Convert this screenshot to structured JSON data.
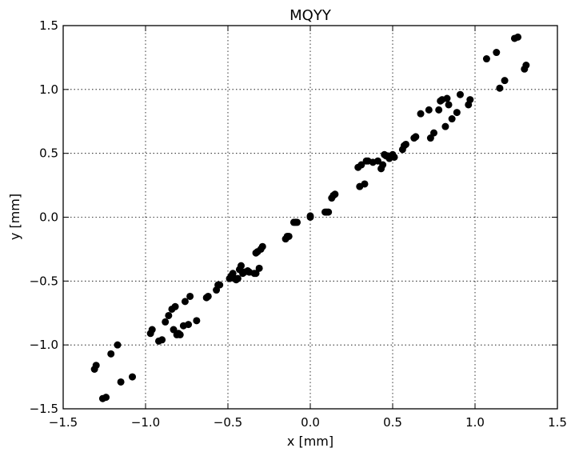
{
  "chart_data": {
    "type": "scatter",
    "title": "MQYY",
    "xlabel": "x [mm]",
    "ylabel": "y [mm]",
    "xlim": [
      -1.5,
      1.5
    ],
    "ylim": [
      -1.5,
      1.5
    ],
    "x_ticks": [
      -1.5,
      -1.0,
      -0.5,
      0.0,
      0.5,
      1.0,
      1.5
    ],
    "y_ticks": [
      -1.5,
      -1.0,
      -0.5,
      0.0,
      0.5,
      1.0,
      1.5
    ],
    "x_tick_labels": [
      "−1.5",
      "−1.0",
      "−0.5",
      "0.0",
      "0.5",
      "1.0",
      "1.5"
    ],
    "y_tick_labels": [
      "−1.5",
      "−1.0",
      "−0.5",
      "0.0",
      "0.5",
      "1.0",
      "1.5"
    ],
    "grid": true,
    "marker_color": "#000000",
    "x": [
      -1.31,
      -1.3,
      -1.26,
      -1.24,
      -1.21,
      -1.17,
      -1.15,
      -1.08,
      -0.97,
      -0.96,
      -0.92,
      -0.9,
      -0.88,
      -0.86,
      -0.84,
      -0.83,
      -0.82,
      -0.81,
      -0.8,
      -0.79,
      -0.77,
      -0.76,
      -0.74,
      -0.73,
      -0.69,
      -0.63,
      -0.62,
      -0.57,
      -0.56,
      -0.55,
      -0.49,
      -0.48,
      -0.47,
      -0.46,
      -0.45,
      -0.44,
      -0.43,
      -0.42,
      -0.41,
      -0.4,
      -0.38,
      -0.37,
      -0.34,
      -0.33,
      -0.33,
      -0.32,
      -0.31,
      -0.3,
      -0.29,
      -0.15,
      -0.14,
      -0.13,
      -0.1,
      -0.09,
      -0.08,
      0.0,
      0.0,
      0.09,
      0.1,
      0.11,
      0.13,
      0.14,
      0.15,
      0.29,
      0.3,
      0.31,
      0.33,
      0.34,
      0.35,
      0.38,
      0.41,
      0.43,
      0.44,
      0.45,
      0.46,
      0.47,
      0.48,
      0.5,
      0.51,
      0.56,
      0.57,
      0.58,
      0.63,
      0.64,
      0.67,
      0.72,
      0.73,
      0.75,
      0.78,
      0.79,
      0.8,
      0.82,
      0.83,
      0.84,
      0.86,
      0.89,
      0.91,
      0.96,
      0.97,
      1.07,
      1.13,
      1.15,
      1.18,
      1.24,
      1.26,
      1.3,
      1.31
    ],
    "y": [
      -1.19,
      -1.16,
      -1.42,
      -1.41,
      -1.07,
      -1.0,
      -1.29,
      -1.25,
      -0.91,
      -0.88,
      -0.97,
      -0.96,
      -0.82,
      -0.77,
      -0.72,
      -0.88,
      -0.7,
      -0.92,
      -0.91,
      -0.92,
      -0.85,
      -0.66,
      -0.84,
      -0.62,
      -0.81,
      -0.63,
      -0.62,
      -0.57,
      -0.53,
      -0.53,
      -0.48,
      -0.46,
      -0.44,
      -0.48,
      -0.49,
      -0.48,
      -0.41,
      -0.38,
      -0.44,
      -0.43,
      -0.42,
      -0.43,
      -0.44,
      -0.44,
      -0.28,
      -0.27,
      -0.4,
      -0.25,
      -0.23,
      -0.17,
      -0.15,
      -0.15,
      -0.04,
      -0.04,
      -0.04,
      0.0,
      0.01,
      0.04,
      0.04,
      0.04,
      0.15,
      0.17,
      0.18,
      0.39,
      0.24,
      0.41,
      0.26,
      0.44,
      0.44,
      0.43,
      0.44,
      0.38,
      0.41,
      0.49,
      0.48,
      0.48,
      0.46,
      0.49,
      0.47,
      0.53,
      0.56,
      0.57,
      0.62,
      0.63,
      0.81,
      0.84,
      0.62,
      0.66,
      0.84,
      0.91,
      0.92,
      0.71,
      0.93,
      0.88,
      0.77,
      0.82,
      0.96,
      0.88,
      0.92,
      1.24,
      1.29,
      1.01,
      1.07,
      1.4,
      1.41,
      1.16,
      1.19
    ]
  }
}
